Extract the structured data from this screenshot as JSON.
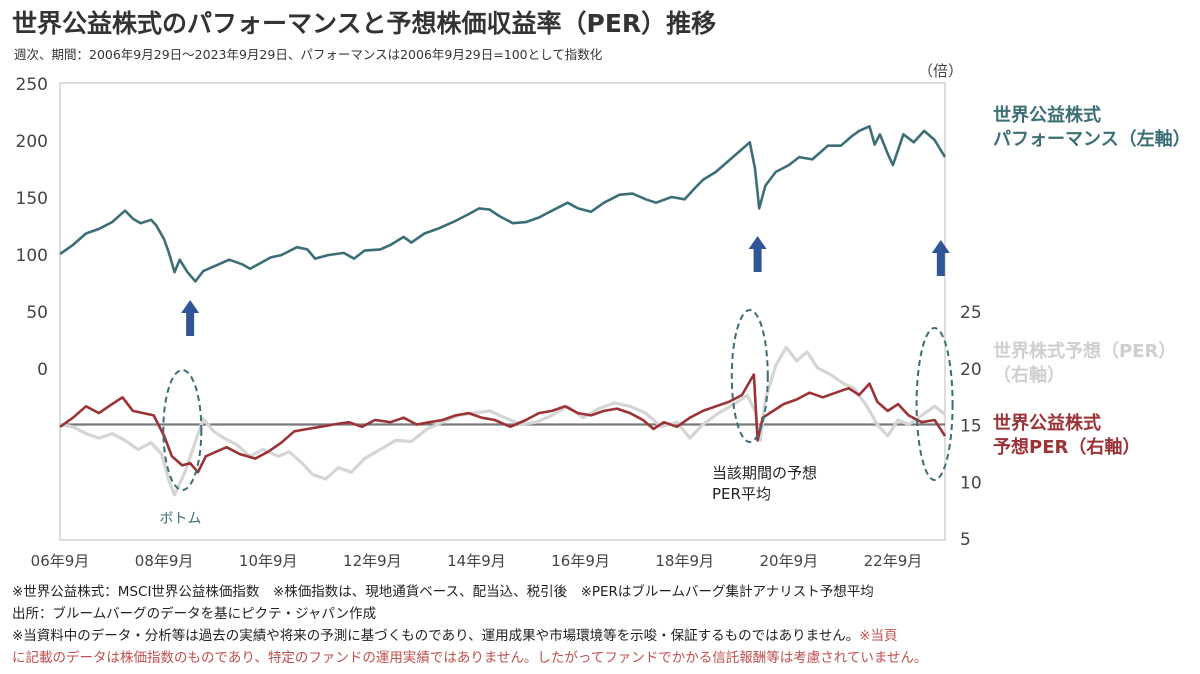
{
  "title": "世界公益株式のパフォーマンスと予想株価収益率（PER）推移",
  "subtitle": "週次、期間：2006年9月29日～2023年9月29日、パフォーマンスは2006年9月29日=100として指数化",
  "chart_data": {
    "type": "line",
    "x_ticks": [
      "06年9月",
      "08年9月",
      "10年9月",
      "12年9月",
      "14年9月",
      "16年9月",
      "18年9月",
      "20年9月",
      "22年9月"
    ],
    "x_range": [
      2006.75,
      2023.75
    ],
    "left_axis": {
      "unit": "",
      "ticks": [
        0,
        50,
        100,
        150,
        200,
        250
      ],
      "range": [
        0,
        250
      ]
    },
    "right_axis": {
      "unit": "（倍）",
      "ticks": [
        5,
        10,
        15,
        20,
        25
      ],
      "range": [
        5,
        25
      ]
    },
    "series": [
      {
        "name": "世界公益株式 パフォーマンス（左軸）",
        "label_lines": [
          "世界公益株式",
          "パフォーマンス（左軸）"
        ],
        "axis": "left",
        "color": "#3c6e76",
        "points": [
          [
            2006.75,
            100
          ],
          [
            2007.0,
            108
          ],
          [
            2007.25,
            118
          ],
          [
            2007.5,
            122
          ],
          [
            2007.75,
            128
          ],
          [
            2007.9,
            134
          ],
          [
            2008.0,
            138
          ],
          [
            2008.15,
            131
          ],
          [
            2008.3,
            127
          ],
          [
            2008.5,
            130
          ],
          [
            2008.6,
            125
          ],
          [
            2008.75,
            113
          ],
          [
            2008.85,
            100
          ],
          [
            2008.95,
            84
          ],
          [
            2009.05,
            95
          ],
          [
            2009.2,
            84
          ],
          [
            2009.35,
            76
          ],
          [
            2009.5,
            85
          ],
          [
            2009.75,
            90
          ],
          [
            2010.0,
            95
          ],
          [
            2010.25,
            91
          ],
          [
            2010.4,
            87
          ],
          [
            2010.6,
            92
          ],
          [
            2010.8,
            97
          ],
          [
            2011.0,
            99
          ],
          [
            2011.3,
            106
          ],
          [
            2011.5,
            104
          ],
          [
            2011.65,
            96
          ],
          [
            2011.9,
            99
          ],
          [
            2012.2,
            101
          ],
          [
            2012.4,
            96
          ],
          [
            2012.6,
            103
          ],
          [
            2012.9,
            104
          ],
          [
            2013.1,
            108
          ],
          [
            2013.35,
            115
          ],
          [
            2013.5,
            110
          ],
          [
            2013.75,
            118
          ],
          [
            2014.0,
            122
          ],
          [
            2014.3,
            128
          ],
          [
            2014.6,
            135
          ],
          [
            2014.8,
            140
          ],
          [
            2015.0,
            139
          ],
          [
            2015.2,
            133
          ],
          [
            2015.45,
            127
          ],
          [
            2015.7,
            128
          ],
          [
            2015.95,
            132
          ],
          [
            2016.2,
            138
          ],
          [
            2016.5,
            145
          ],
          [
            2016.7,
            140
          ],
          [
            2016.95,
            137
          ],
          [
            2017.2,
            145
          ],
          [
            2017.5,
            152
          ],
          [
            2017.75,
            153
          ],
          [
            2018.0,
            148
          ],
          [
            2018.2,
            145
          ],
          [
            2018.5,
            150
          ],
          [
            2018.75,
            148
          ],
          [
            2018.95,
            158
          ],
          [
            2019.1,
            165
          ],
          [
            2019.35,
            172
          ],
          [
            2019.6,
            182
          ],
          [
            2019.85,
            192
          ],
          [
            2020.0,
            198
          ],
          [
            2020.1,
            175
          ],
          [
            2020.18,
            140
          ],
          [
            2020.3,
            160
          ],
          [
            2020.5,
            172
          ],
          [
            2020.75,
            178
          ],
          [
            2020.95,
            185
          ],
          [
            2021.2,
            183
          ],
          [
            2021.5,
            195
          ],
          [
            2021.75,
            195
          ],
          [
            2021.95,
            203
          ],
          [
            2022.1,
            208
          ],
          [
            2022.3,
            212
          ],
          [
            2022.4,
            196
          ],
          [
            2022.5,
            205
          ],
          [
            2022.65,
            188
          ],
          [
            2022.75,
            178
          ],
          [
            2022.95,
            205
          ],
          [
            2023.15,
            198
          ],
          [
            2023.35,
            208
          ],
          [
            2023.55,
            200
          ],
          [
            2023.75,
            185
          ]
        ]
      },
      {
        "name": "世界株式予想（PER）（右軸）",
        "label_lines": [
          "世界株式予想（PER）",
          "（右軸）"
        ],
        "axis": "right",
        "color": "#d5d5d5",
        "points": [
          [
            2006.75,
            15.0
          ],
          [
            2007.0,
            14.8
          ],
          [
            2007.25,
            14.2
          ],
          [
            2007.5,
            13.8
          ],
          [
            2007.75,
            14.2
          ],
          [
            2008.0,
            13.6
          ],
          [
            2008.25,
            12.8
          ],
          [
            2008.5,
            13.4
          ],
          [
            2008.7,
            12.4
          ],
          [
            2008.85,
            10.0
          ],
          [
            2008.95,
            8.8
          ],
          [
            2009.05,
            9.8
          ],
          [
            2009.15,
            10.8
          ],
          [
            2009.35,
            13.5
          ],
          [
            2009.5,
            15.5
          ],
          [
            2009.7,
            14.4
          ],
          [
            2009.9,
            13.8
          ],
          [
            2010.15,
            13.2
          ],
          [
            2010.4,
            12.2
          ],
          [
            2010.65,
            12.8
          ],
          [
            2010.95,
            12.2
          ],
          [
            2011.15,
            12.6
          ],
          [
            2011.4,
            11.6
          ],
          [
            2011.6,
            10.6
          ],
          [
            2011.85,
            10.2
          ],
          [
            2012.1,
            11.2
          ],
          [
            2012.35,
            10.8
          ],
          [
            2012.6,
            12.0
          ],
          [
            2012.9,
            12.8
          ],
          [
            2013.2,
            13.6
          ],
          [
            2013.5,
            13.5
          ],
          [
            2013.8,
            14.6
          ],
          [
            2014.1,
            15.2
          ],
          [
            2014.4,
            15.8
          ],
          [
            2014.7,
            16.0
          ],
          [
            2015.0,
            16.2
          ],
          [
            2015.3,
            15.6
          ],
          [
            2015.6,
            15.0
          ],
          [
            2015.9,
            15.2
          ],
          [
            2016.2,
            15.8
          ],
          [
            2016.5,
            16.6
          ],
          [
            2016.8,
            15.6
          ],
          [
            2017.1,
            16.4
          ],
          [
            2017.4,
            16.9
          ],
          [
            2017.7,
            16.6
          ],
          [
            2018.0,
            16.0
          ],
          [
            2018.3,
            14.8
          ],
          [
            2018.6,
            15.2
          ],
          [
            2018.85,
            13.8
          ],
          [
            2019.1,
            15.0
          ],
          [
            2019.4,
            16.0
          ],
          [
            2019.7,
            16.8
          ],
          [
            2019.95,
            17.6
          ],
          [
            2020.1,
            16.2
          ],
          [
            2020.2,
            13.6
          ],
          [
            2020.3,
            17.2
          ],
          [
            2020.5,
            20.2
          ],
          [
            2020.7,
            21.8
          ],
          [
            2020.9,
            20.6
          ],
          [
            2021.1,
            21.4
          ],
          [
            2021.3,
            20.0
          ],
          [
            2021.55,
            19.4
          ],
          [
            2021.8,
            18.6
          ],
          [
            2022.0,
            18.2
          ],
          [
            2022.25,
            16.6
          ],
          [
            2022.45,
            15.0
          ],
          [
            2022.65,
            14.0
          ],
          [
            2022.85,
            15.4
          ],
          [
            2023.05,
            15.0
          ],
          [
            2023.3,
            15.8
          ],
          [
            2023.55,
            16.6
          ],
          [
            2023.75,
            15.9
          ]
        ]
      },
      {
        "name": "世界公益株式 予想PER（右軸）",
        "label_lines": [
          "世界公益株式",
          "予想PER（右軸）"
        ],
        "axis": "right",
        "color": "#9b3236",
        "points": [
          [
            2006.75,
            14.8
          ],
          [
            2007.0,
            15.6
          ],
          [
            2007.25,
            16.6
          ],
          [
            2007.5,
            16.0
          ],
          [
            2007.75,
            16.8
          ],
          [
            2007.95,
            17.4
          ],
          [
            2008.15,
            16.2
          ],
          [
            2008.35,
            16.0
          ],
          [
            2008.55,
            15.8
          ],
          [
            2008.75,
            14.0
          ],
          [
            2008.9,
            12.2
          ],
          [
            2009.1,
            11.4
          ],
          [
            2009.25,
            11.6
          ],
          [
            2009.4,
            10.8
          ],
          [
            2009.55,
            12.2
          ],
          [
            2009.75,
            12.6
          ],
          [
            2009.95,
            13.0
          ],
          [
            2010.2,
            12.4
          ],
          [
            2010.5,
            12.0
          ],
          [
            2010.75,
            12.6
          ],
          [
            2011.0,
            13.4
          ],
          [
            2011.25,
            14.4
          ],
          [
            2011.5,
            14.6
          ],
          [
            2011.75,
            14.8
          ],
          [
            2012.0,
            15.0
          ],
          [
            2012.3,
            15.2
          ],
          [
            2012.55,
            14.8
          ],
          [
            2012.8,
            15.4
          ],
          [
            2013.1,
            15.2
          ],
          [
            2013.35,
            15.6
          ],
          [
            2013.6,
            15.0
          ],
          [
            2013.85,
            15.2
          ],
          [
            2014.1,
            15.4
          ],
          [
            2014.35,
            15.8
          ],
          [
            2014.6,
            16.0
          ],
          [
            2014.85,
            15.6
          ],
          [
            2015.1,
            15.4
          ],
          [
            2015.4,
            14.8
          ],
          [
            2015.7,
            15.4
          ],
          [
            2015.95,
            16.0
          ],
          [
            2016.2,
            16.2
          ],
          [
            2016.45,
            16.6
          ],
          [
            2016.7,
            16.0
          ],
          [
            2016.95,
            15.8
          ],
          [
            2017.2,
            16.2
          ],
          [
            2017.45,
            16.4
          ],
          [
            2017.7,
            16.0
          ],
          [
            2017.95,
            15.4
          ],
          [
            2018.15,
            14.6
          ],
          [
            2018.35,
            15.2
          ],
          [
            2018.6,
            14.8
          ],
          [
            2018.85,
            15.6
          ],
          [
            2019.1,
            16.2
          ],
          [
            2019.35,
            16.6
          ],
          [
            2019.6,
            17.0
          ],
          [
            2019.85,
            17.6
          ],
          [
            2020.0,
            18.8
          ],
          [
            2020.08,
            19.4
          ],
          [
            2020.15,
            13.6
          ],
          [
            2020.25,
            15.6
          ],
          [
            2020.45,
            16.2
          ],
          [
            2020.65,
            16.8
          ],
          [
            2020.9,
            17.2
          ],
          [
            2021.15,
            17.8
          ],
          [
            2021.4,
            17.4
          ],
          [
            2021.65,
            17.8
          ],
          [
            2021.9,
            18.2
          ],
          [
            2022.1,
            17.6
          ],
          [
            2022.3,
            18.6
          ],
          [
            2022.45,
            17.0
          ],
          [
            2022.65,
            16.2
          ],
          [
            2022.85,
            16.8
          ],
          [
            2023.05,
            15.8
          ],
          [
            2023.3,
            15.2
          ],
          [
            2023.55,
            15.4
          ],
          [
            2023.75,
            14.0
          ]
        ]
      }
    ],
    "reference_line": {
      "axis": "right",
      "value": 15.0,
      "label_lines": [
        "当該期間の予想",
        "PER平均"
      ]
    },
    "annotations": {
      "bottom_label": "ボトム",
      "arrow_years": [
        2009.25,
        2020.15,
        2023.67
      ],
      "circle_years": [
        2009.1,
        2020.0,
        2023.55
      ]
    }
  },
  "footnotes": {
    "line1": "※世界公益株式：MSCI世界公益株価指数　※株価指数は、現地通貨ベース、配当込、税引後　※PERはブルームバーグ集計アナリスト予想平均",
    "line2": "出所：ブルームバーグのデータを基にピクテ・ジャパン作成",
    "line3a": "※当資料中のデータ・分析等は過去の実績や将来の予測に基づくものであり、運用成果や市場環境等を示唆・保証するものではありません。",
    "line3b": "※当頁",
    "line4": "に記載のデータは株価指数のものであり、特定のファンドの運用実績ではありません。したがってファンドでかかる信託報酬等は考慮されていません。"
  }
}
